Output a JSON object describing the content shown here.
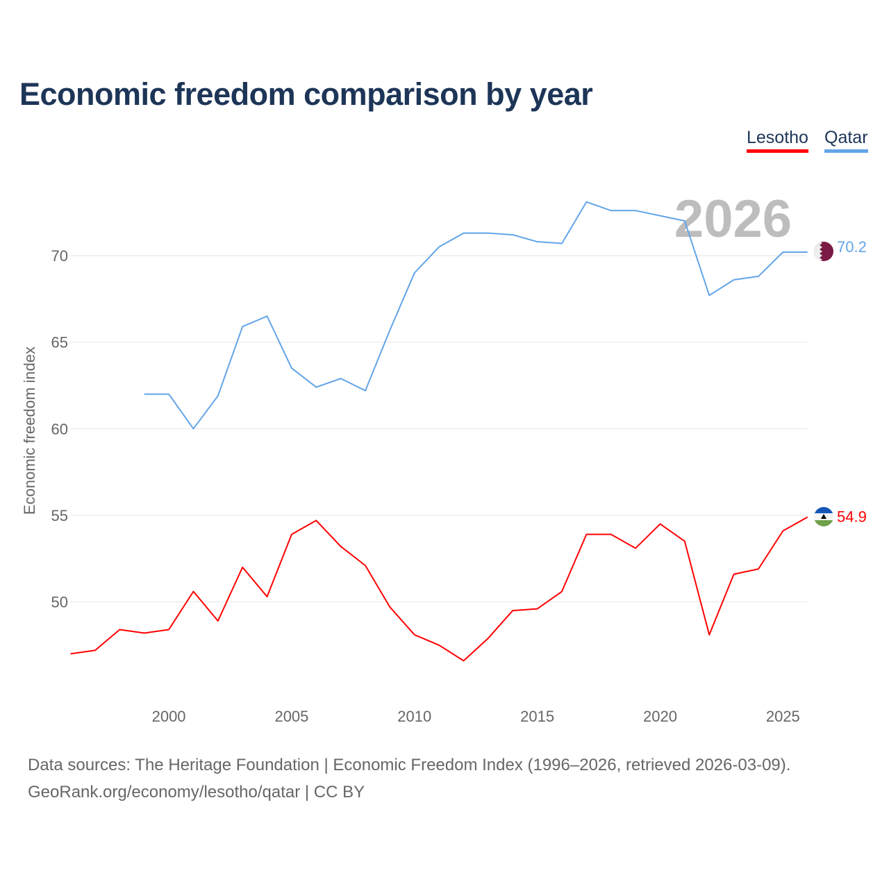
{
  "title": "Economic freedom comparison by year",
  "legend": [
    {
      "label": "Lesotho",
      "color": "#ff0000"
    },
    {
      "label": "Qatar",
      "color": "#62a4e8"
    }
  ],
  "year_watermark": "2026",
  "footer": {
    "line1": "Data sources: The Heritage Foundation | Economic Freedom Index (1996–2026, retrieved 2026-03-09).",
    "line2": "GeoRank.org/economy/lesotho/qatar | CC BY"
  },
  "chart_data": {
    "type": "line",
    "title": "Economic freedom comparison by year",
    "xlabel": "",
    "ylabel": "Economic freedom index",
    "xlim": [
      1996,
      2026
    ],
    "ylim": [
      44,
      74.5
    ],
    "xticks": [
      2000,
      2005,
      2010,
      2015,
      2020,
      2025
    ],
    "yticks": [
      50,
      55,
      60,
      65,
      70
    ],
    "grid": true,
    "legend_position": "top-right",
    "series": [
      {
        "name": "Lesotho",
        "color": "#ff0000",
        "end_label": "54.9",
        "x": [
          1996,
          1997,
          1998,
          1999,
          2000,
          2001,
          2002,
          2003,
          2004,
          2005,
          2006,
          2007,
          2008,
          2009,
          2010,
          2011,
          2012,
          2013,
          2014,
          2015,
          2016,
          2017,
          2018,
          2019,
          2020,
          2021,
          2022,
          2023,
          2024,
          2025,
          2026
        ],
        "y": [
          47.0,
          47.2,
          48.4,
          48.2,
          48.4,
          50.6,
          48.9,
          52.0,
          50.3,
          53.9,
          54.7,
          53.2,
          52.1,
          49.7,
          48.1,
          47.5,
          46.6,
          47.9,
          49.5,
          49.6,
          50.6,
          53.9,
          53.9,
          53.1,
          54.5,
          53.5,
          48.1,
          51.6,
          51.9,
          54.1,
          54.9
        ]
      },
      {
        "name": "Qatar",
        "color": "#62a4e8",
        "end_label": "70.2",
        "x": [
          1999,
          2000,
          2001,
          2002,
          2003,
          2004,
          2005,
          2006,
          2007,
          2008,
          2009,
          2010,
          2011,
          2012,
          2013,
          2014,
          2015,
          2016,
          2017,
          2018,
          2019,
          2020,
          2021,
          2022,
          2023,
          2024,
          2025,
          2026
        ],
        "y": [
          62.0,
          62.0,
          60.0,
          61.9,
          65.9,
          66.5,
          63.5,
          62.4,
          62.9,
          62.2,
          65.7,
          69.0,
          70.5,
          71.3,
          71.3,
          71.2,
          70.8,
          70.7,
          73.1,
          72.6,
          72.6,
          72.3,
          72.0,
          67.7,
          68.6,
          68.8,
          70.2,
          70.2
        ]
      }
    ]
  }
}
